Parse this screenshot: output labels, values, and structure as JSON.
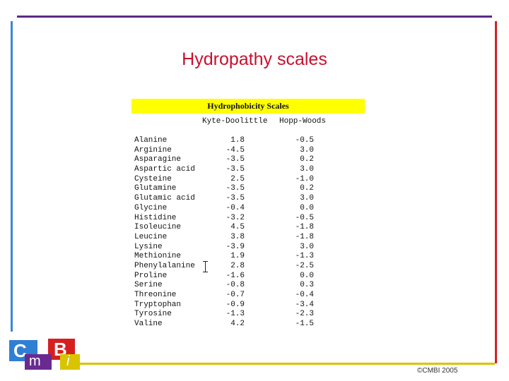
{
  "slide": {
    "title": "Hydropathy scales",
    "footer": "©CMBI 2005"
  },
  "logo": {
    "c": "C",
    "m": "m",
    "b": "B",
    "i": "i"
  },
  "colors": {
    "title": "#c8102e",
    "top_rule": "#5b2a86",
    "left_rule": "#3a86d8",
    "right_rule": "#d62020",
    "bottom_rule": "#d8c400",
    "header_bg": "#ffff00"
  },
  "table": {
    "caption": "Hydrophobicity Scales",
    "columns": [
      "Kyte-Doolittle",
      "Hopp-Woods"
    ],
    "rows": [
      {
        "name": "Alanine",
        "kd": "1.8",
        "hw": "-0.5"
      },
      {
        "name": "Arginine",
        "kd": "-4.5",
        "hw": "3.0"
      },
      {
        "name": "Asparagine",
        "kd": "-3.5",
        "hw": "0.2"
      },
      {
        "name": "Aspartic acid",
        "kd": "-3.5",
        "hw": "3.0"
      },
      {
        "name": "Cysteine",
        "kd": "2.5",
        "hw": "-1.0"
      },
      {
        "name": "Glutamine",
        "kd": "-3.5",
        "hw": "0.2"
      },
      {
        "name": "Glutamic acid",
        "kd": "-3.5",
        "hw": "3.0"
      },
      {
        "name": "Glycine",
        "kd": "-0.4",
        "hw": "0.0"
      },
      {
        "name": "Histidine",
        "kd": "-3.2",
        "hw": "-0.5"
      },
      {
        "name": "Isoleucine",
        "kd": "4.5",
        "hw": "-1.8"
      },
      {
        "name": "Leucine",
        "kd": "3.8",
        "hw": "-1.8"
      },
      {
        "name": "Lysine",
        "kd": "-3.9",
        "hw": "3.0"
      },
      {
        "name": "Methionine",
        "kd": "1.9",
        "hw": "-1.3"
      },
      {
        "name": "Phenylalanine",
        "kd": "2.8",
        "hw": "-2.5"
      },
      {
        "name": "Proline",
        "kd": "-1.6",
        "hw": "0.0"
      },
      {
        "name": "Serine",
        "kd": "-0.8",
        "hw": "0.3"
      },
      {
        "name": "Threonine",
        "kd": "-0.7",
        "hw": "-0.4"
      },
      {
        "name": "Tryptophan",
        "kd": "-0.9",
        "hw": "-3.4"
      },
      {
        "name": "Tyrosine",
        "kd": "-1.3",
        "hw": "-2.3"
      },
      {
        "name": "Valine",
        "kd": "4.2",
        "hw": "-1.5"
      }
    ]
  }
}
